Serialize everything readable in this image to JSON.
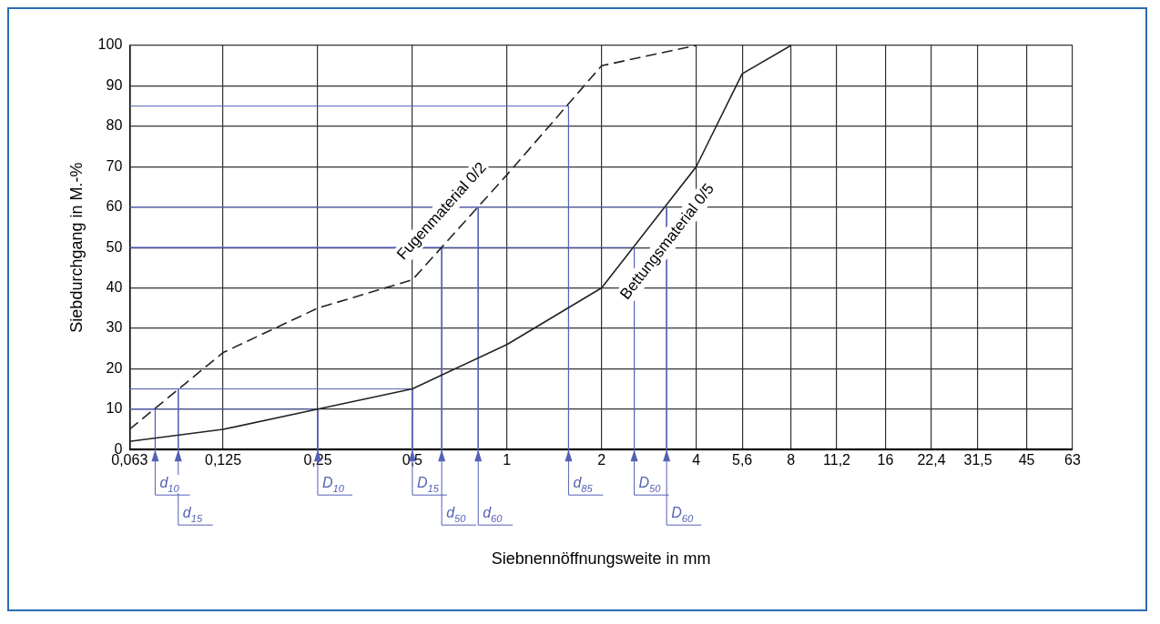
{
  "chart_data": {
    "type": "line",
    "xlabel": "Siebnennöffnungsweite in mm",
    "ylabel": "Siebdurchgang in M.-%",
    "log": "x",
    "xlim": [
      0.063,
      63
    ],
    "xticks": [
      {
        "value": 0.063,
        "label": "0,063"
      },
      {
        "value": 0.125,
        "label": "0,125"
      },
      {
        "value": 0.25,
        "label": "0,25"
      },
      {
        "value": 0.5,
        "label": "0,5"
      },
      1,
      2,
      4,
      {
        "value": 5.6,
        "label": "5,6"
      },
      8,
      {
        "value": 11.2,
        "label": "11,2"
      },
      16,
      {
        "value": 22.4,
        "label": "22,4"
      },
      {
        "value": 31.5,
        "label": "31,5"
      },
      45,
      63
    ],
    "ylim": [
      0,
      100
    ],
    "yticks": [
      0,
      10,
      20,
      30,
      40,
      50,
      60,
      70,
      80,
      90,
      100
    ],
    "grid": true,
    "legend": false,
    "marker": "none",
    "series": [
      {
        "name": "Fugenmaterial 0/2",
        "color": "#222222",
        "line_style": "dashed",
        "x": [
          0.063,
          0.125,
          0.25,
          0.5,
          1,
          2,
          4
        ],
        "values": [
          5,
          24,
          35,
          42,
          68,
          95,
          100
        ]
      },
      {
        "name": "Bettungsmaterial 0/5",
        "color": "#222222",
        "line_style": "solid",
        "x": [
          0.063,
          0.125,
          0.25,
          0.5,
          1,
          2,
          4,
          5.6,
          8
        ],
        "values": [
          2,
          5,
          10,
          15,
          26,
          40,
          70,
          93,
          100
        ]
      },
      {
        "color": "#5561b5",
        "x": [
          0.063,
          0.076,
          0.076
        ],
        "values": [
          10,
          10,
          0
        ]
      },
      {
        "color": "#5561b5",
        "x": [
          0.063,
          0.09,
          0.09
        ],
        "values": [
          15,
          15,
          0
        ]
      },
      {
        "color": "#5561b5",
        "x": [
          0.063,
          0.25,
          0.25
        ],
        "values": [
          10,
          10,
          0
        ]
      },
      {
        "color": "#5561b5",
        "x": [
          0.063,
          0.5,
          0.5
        ],
        "values": [
          15,
          15,
          0
        ]
      },
      {
        "color": "#5561b5",
        "x": [
          0.063,
          0.62,
          0.62
        ],
        "values": [
          50,
          50,
          0
        ]
      },
      {
        "color": "#5561b5",
        "x": [
          0.063,
          0.81,
          0.81
        ],
        "values": [
          60,
          60,
          0
        ]
      },
      {
        "color": "#5561b5",
        "x": [
          0.063,
          1.57,
          1.57
        ],
        "values": [
          85,
          85,
          0
        ]
      },
      {
        "color": "#5561b5",
        "x": [
          0.063,
          2.54,
          2.54
        ],
        "values": [
          50,
          50,
          0
        ]
      },
      {
        "color": "#5561b5",
        "x": [
          0.063,
          3.22,
          3.22
        ],
        "values": [
          60,
          60,
          0
        ]
      }
    ],
    "annotations": [
      {
        "text": "d$_{10}$",
        "x": 0.076,
        "y": 0
      },
      {
        "text": "d$_{15}$",
        "x": 0.09,
        "y": 0
      },
      {
        "text": "D$_{10}$",
        "x": 0.25,
        "y": 0
      },
      {
        "text": "D$_{15}$",
        "x": 0.5,
        "y": 0
      },
      {
        "text": "d$_{50}$",
        "x": 0.62,
        "y": 0
      },
      {
        "text": "d$_{60}$",
        "x": 0.81,
        "y": 0
      },
      {
        "text": "d$_{85}$",
        "x": 1.57,
        "y": 0
      },
      {
        "text": "D$_{50}$",
        "x": 2.54,
        "y": 0
      },
      {
        "text": "D$_{60}$",
        "x": 3.22,
        "y": 0
      }
    ]
  }
}
